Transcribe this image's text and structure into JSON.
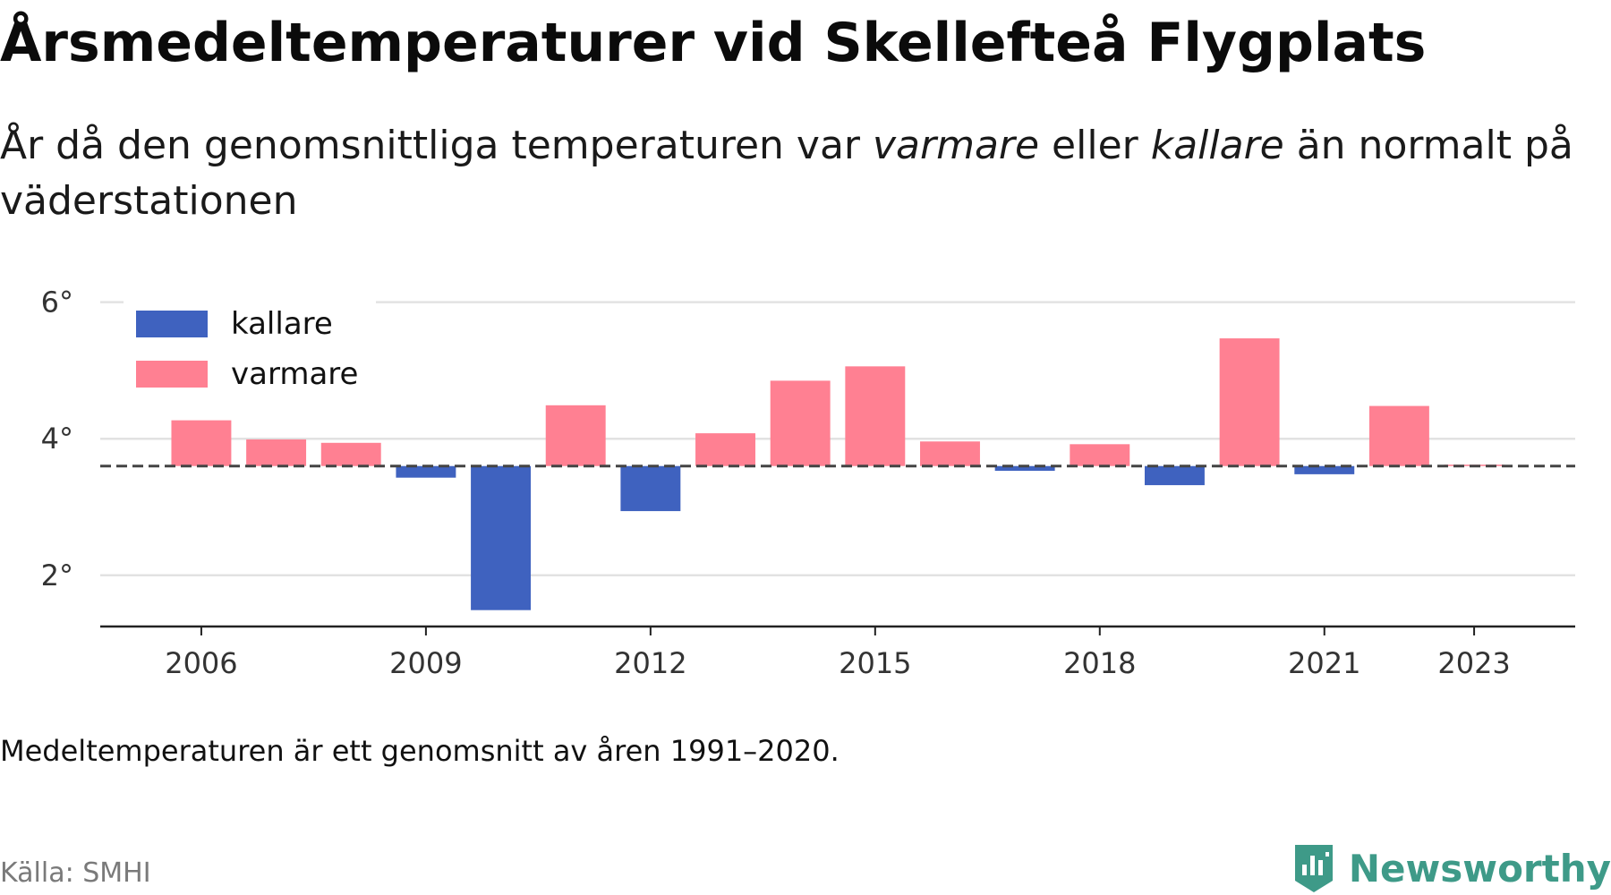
{
  "title": "Årsmedeltemperaturer vid Skellefteå Flygplats",
  "subtitle": {
    "part1": "År då den genomsnittliga temperaturen var ",
    "warm_word": "varmare",
    "part2": " eller ",
    "cold_word": "kallare",
    "part3": " än normalt på väderstationen"
  },
  "note": "Medeltemperaturen är ett genomsnitt av åren 1991–2020.",
  "source": "Källa: SMHI",
  "brand": {
    "name": "Newsworthy",
    "color": "#3e9a88"
  },
  "chart_data": {
    "type": "bar",
    "baseline": 3.6,
    "ylim": [
      1.25,
      6.1
    ],
    "y_ticks": [
      2,
      4,
      6
    ],
    "y_tick_labels": [
      "2°",
      "4°",
      "6°"
    ],
    "x_ticks": [
      2006,
      2009,
      2012,
      2015,
      2018,
      2021,
      2023
    ],
    "xlim": [
      2004.65,
      2024.35
    ],
    "grid": true,
    "legend_position": "top-left",
    "colors": {
      "kallare": "#3f62bf",
      "varmare": "#ff8092",
      "baseline": "#444444",
      "grid": "#e2e2e2",
      "axis": "#222222"
    },
    "legend": [
      {
        "key": "kallare",
        "label": "kallare"
      },
      {
        "key": "varmare",
        "label": "varmare"
      }
    ],
    "x": [
      2006,
      2007,
      2008,
      2009,
      2010,
      2011,
      2012,
      2013,
      2014,
      2015,
      2016,
      2017,
      2018,
      2019,
      2020,
      2021,
      2022,
      2023
    ],
    "values": [
      4.27,
      3.99,
      3.94,
      3.43,
      1.49,
      4.49,
      2.94,
      4.08,
      4.85,
      5.06,
      3.96,
      3.53,
      3.92,
      3.32,
      5.47,
      3.48,
      4.48,
      3.62
    ]
  }
}
